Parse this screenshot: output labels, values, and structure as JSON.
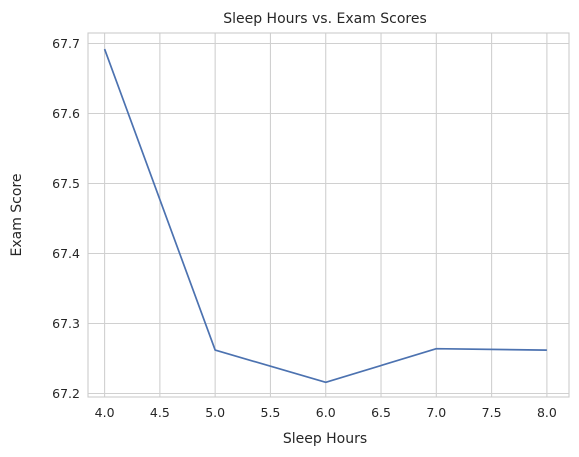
{
  "chart_data": {
    "type": "line",
    "title": "Sleep Hours vs. Exam Scores",
    "xlabel": "Sleep Hours",
    "ylabel": "Exam Score",
    "xlim": [
      3.85,
      8.2
    ],
    "ylim": [
      67.195,
      67.715
    ],
    "xticks": [
      4.0,
      4.5,
      5.0,
      5.5,
      6.0,
      6.5,
      7.0,
      7.5,
      8.0
    ],
    "xtick_labels": [
      "4.0",
      "4.5",
      "5.0",
      "5.5",
      "6.0",
      "6.5",
      "7.0",
      "7.5",
      "8.0"
    ],
    "yticks": [
      67.2,
      67.3,
      67.4,
      67.5,
      67.6,
      67.7
    ],
    "ytick_labels": [
      "67.2",
      "67.3",
      "67.4",
      "67.5",
      "67.6",
      "67.7"
    ],
    "grid": true,
    "x": [
      4,
      5,
      6,
      7,
      8
    ],
    "values": [
      67.692,
      67.262,
      67.216,
      67.264,
      67.262
    ],
    "color": "#4c72b0"
  }
}
